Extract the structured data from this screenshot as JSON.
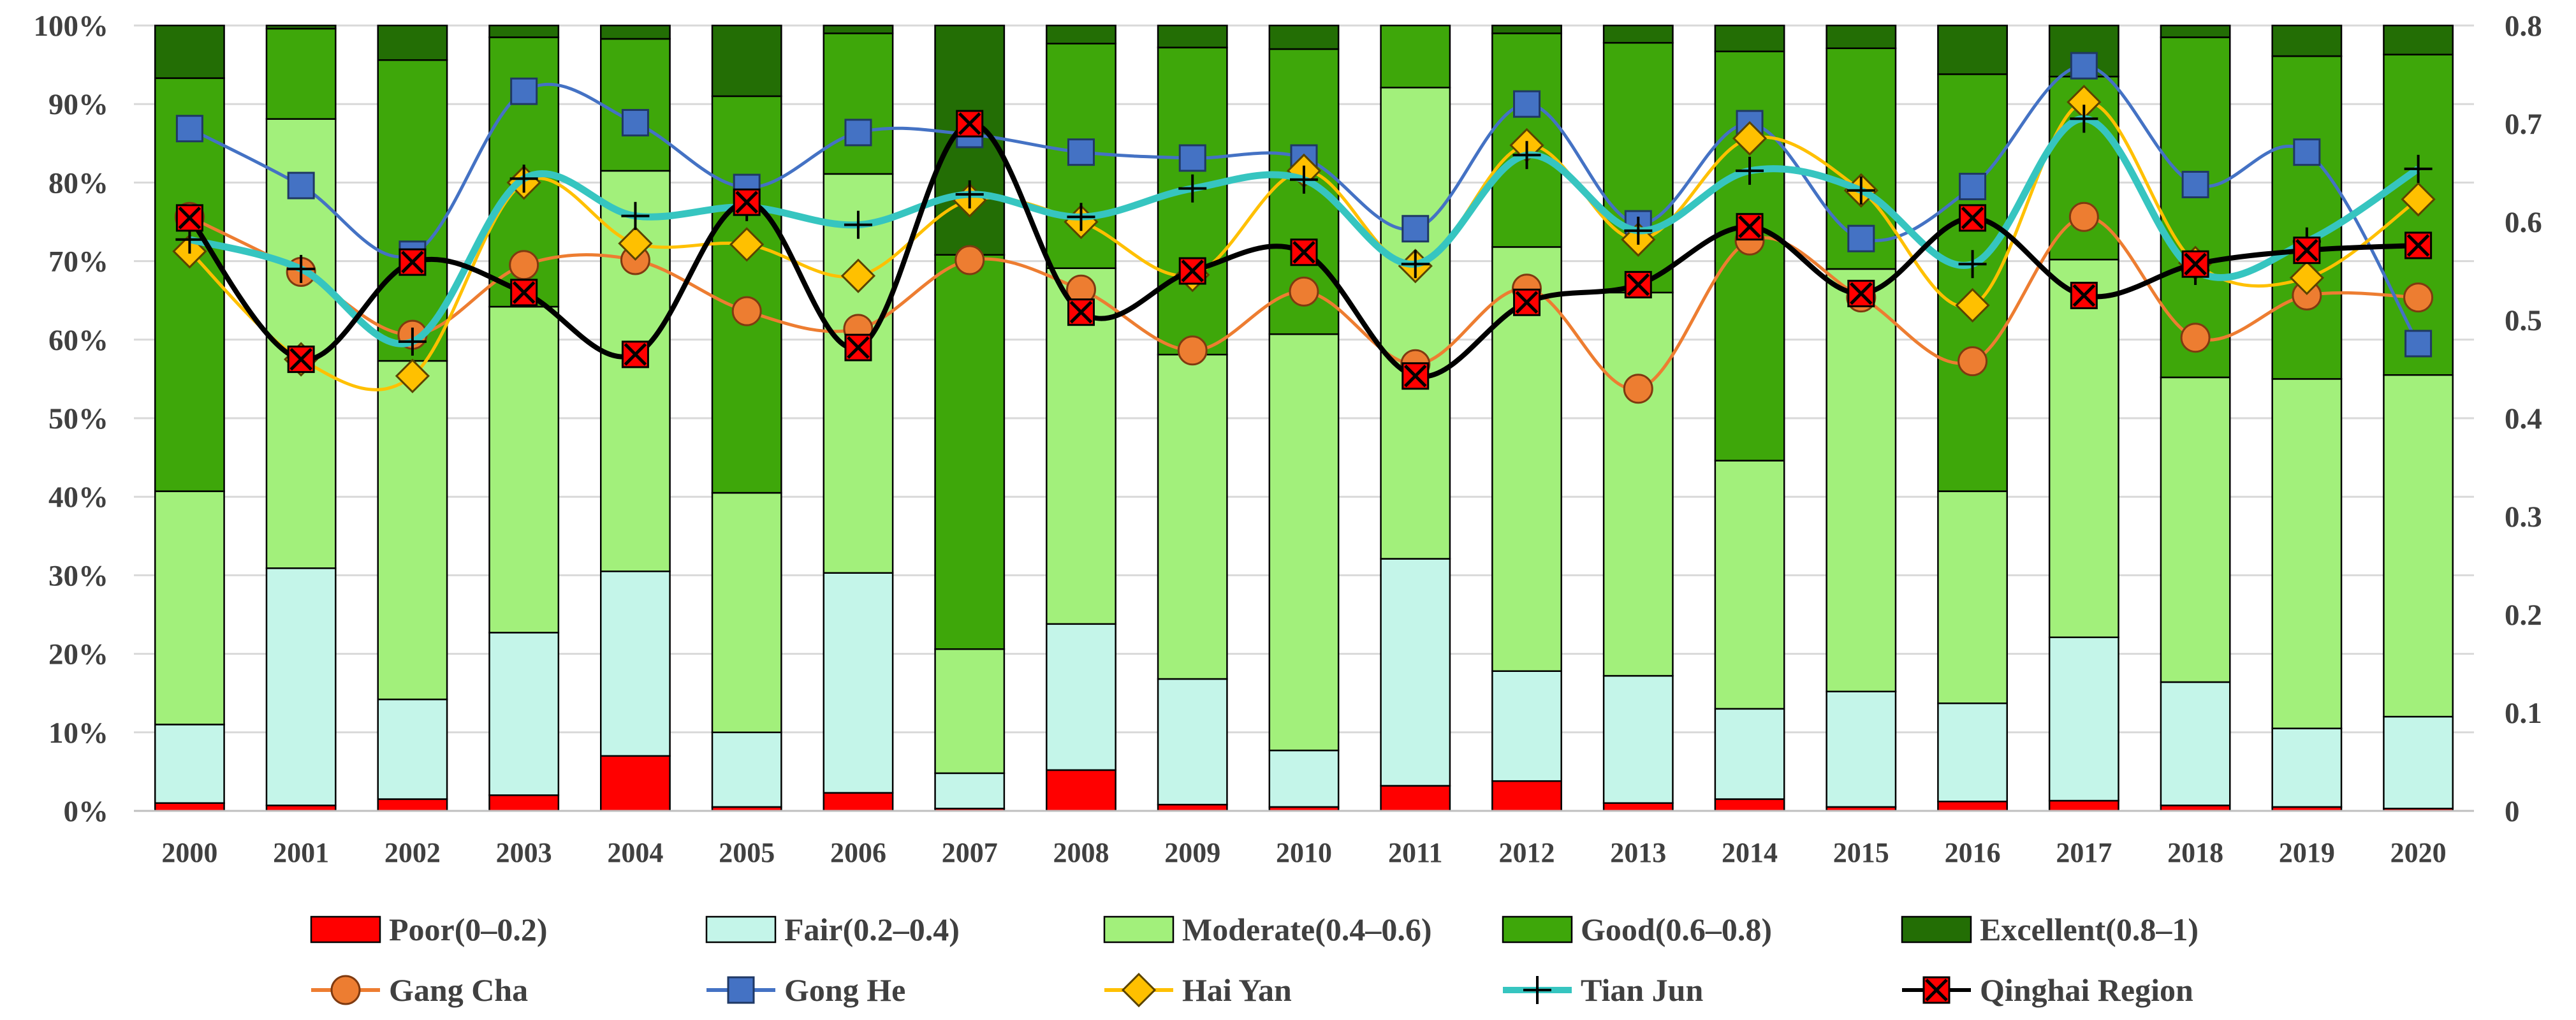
{
  "chart_data": {
    "type": "bar",
    "subtype": "stacked-100-with-lines",
    "title": "",
    "xlabel": "",
    "ylabel": "",
    "categories": [
      "2000",
      "2001",
      "2002",
      "2003",
      "2004",
      "2005",
      "2006",
      "2007",
      "2008",
      "2009",
      "2010",
      "2011",
      "2012",
      "2013",
      "2014",
      "2015",
      "2016",
      "2017",
      "2018",
      "2019",
      "2020"
    ],
    "left_axis": {
      "ylim": [
        0,
        100
      ],
      "ticks": [
        0,
        10,
        20,
        30,
        40,
        50,
        60,
        70,
        80,
        90,
        100
      ],
      "tick_labels": [
        "0%",
        "10%",
        "20%",
        "30%",
        "40%",
        "50%",
        "60%",
        "70%",
        "80%",
        "90%",
        "100%"
      ]
    },
    "right_axis": {
      "ylim": [
        0,
        0.8
      ],
      "ticks": [
        0,
        0.1,
        0.2,
        0.3,
        0.4,
        0.5,
        0.6,
        0.7,
        0.8
      ],
      "tick_labels": [
        "0",
        "0.1",
        "0.2",
        "0.3",
        "0.4",
        "0.5",
        "0.6",
        "0.7",
        "0.8"
      ]
    },
    "grid": true,
    "legend_position": "bottom",
    "bar_series": [
      {
        "name": "Poor(0–0.2)",
        "color": "#ff0000",
        "values": [
          1,
          0.7,
          1.5,
          2,
          7,
          0.5,
          2.3,
          0.3,
          5.2,
          0.8,
          0.5,
          3.2,
          3.8,
          1,
          1.5,
          0.5,
          1.2,
          1.3,
          0.7,
          0.5,
          0.3
        ]
      },
      {
        "name": "Fair(0.2–0.4)",
        "color": "#c4f5e9",
        "values": [
          10,
          30.2,
          12.7,
          20.7,
          23.5,
          9.5,
          28,
          4.5,
          18.6,
          16,
          7.2,
          28.9,
          14,
          16.2,
          11.5,
          14.7,
          12.5,
          20.8,
          15.7,
          10,
          11.7
        ]
      },
      {
        "name": "Moderate(0.4–0.6)",
        "color": "#a2f07b",
        "values": [
          29.7,
          57.2,
          43.1,
          41.5,
          51,
          30.5,
          50.8,
          15.8,
          45.3,
          41.3,
          53,
          60,
          54,
          48.8,
          31.6,
          53.8,
          27,
          48.1,
          38.8,
          44.5,
          43.5
        ]
      },
      {
        "name": "Good(0.6–0.8)",
        "color": "#3ea70a",
        "values": [
          52.6,
          11.5,
          38.3,
          34.3,
          16.8,
          50.5,
          17.9,
          50.2,
          28.6,
          39.1,
          36.3,
          7.9,
          27.2,
          31.8,
          52.1,
          28.1,
          53.1,
          23.3,
          43.3,
          41.1,
          40.8
        ]
      },
      {
        "name": "Excellent(0.8–1)",
        "color": "#236e05",
        "values": [
          6.7,
          0.4,
          4.4,
          1.5,
          1.7,
          9,
          1,
          29.2,
          2.3,
          2.8,
          3,
          0,
          1,
          2.2,
          3.3,
          2.9,
          6.2,
          6.5,
          1.5,
          3.9,
          3.7
        ]
      }
    ],
    "line_series": [
      {
        "name": "Gang Cha",
        "color": "#ed7d31",
        "marker": "circle",
        "values": [
          0.605,
          0.549,
          0.485,
          0.556,
          0.561,
          0.509,
          0.491,
          0.561,
          0.531,
          0.469,
          0.529,
          0.455,
          0.532,
          0.43,
          0.581,
          0.523,
          0.458,
          0.605,
          0.482,
          0.525,
          0.523
        ]
      },
      {
        "name": "Gong He",
        "color": "#4472c4",
        "marker": "square",
        "values": [
          0.695,
          0.637,
          0.567,
          0.733,
          0.701,
          0.635,
          0.691,
          0.689,
          0.671,
          0.665,
          0.665,
          0.593,
          0.72,
          0.598,
          0.7,
          0.583,
          0.636,
          0.759,
          0.638,
          0.671,
          0.476
        ]
      },
      {
        "name": "Hai Yan",
        "color": "#ffc000",
        "marker": "diamond",
        "values": [
          0.57,
          0.46,
          0.443,
          0.64,
          0.578,
          0.577,
          0.545,
          0.622,
          0.6,
          0.546,
          0.652,
          0.555,
          0.678,
          0.582,
          0.685,
          0.632,
          0.515,
          0.722,
          0.558,
          0.543,
          0.623
        ]
      },
      {
        "name": "Tian Jun",
        "color": "#36c5c0",
        "marker": "plus",
        "values": [
          0.582,
          0.552,
          0.478,
          0.644,
          0.606,
          0.615,
          0.597,
          0.628,
          0.605,
          0.634,
          0.643,
          0.557,
          0.668,
          0.591,
          0.652,
          0.632,
          0.557,
          0.705,
          0.55,
          0.58,
          0.654
        ]
      },
      {
        "name": "Qinghai Region",
        "color": "#000000",
        "marker": "x-square",
        "values": [
          0.604,
          0.46,
          0.559,
          0.528,
          0.465,
          0.62,
          0.472,
          0.7,
          0.508,
          0.55,
          0.569,
          0.443,
          0.518,
          0.536,
          0.595,
          0.527,
          0.604,
          0.525,
          0.557,
          0.571,
          0.576
        ]
      }
    ]
  }
}
